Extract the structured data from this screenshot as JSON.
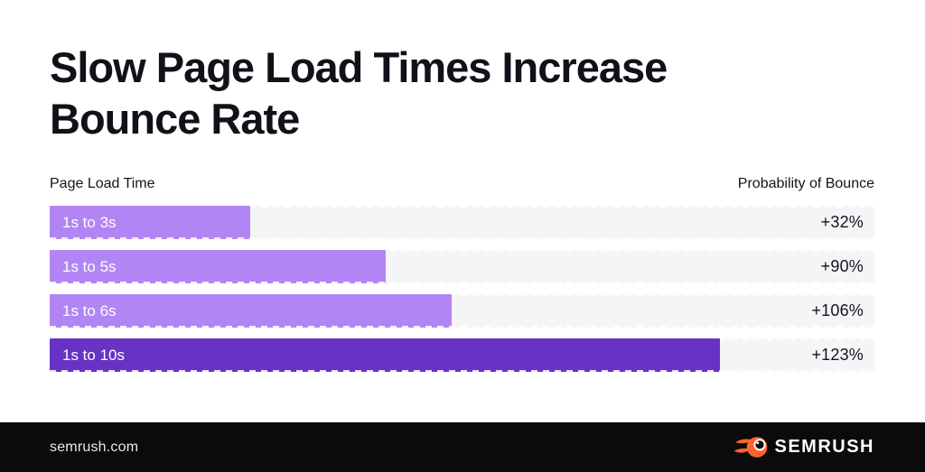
{
  "title": {
    "full": "Slow Page Load Times Increase Bounce Rate",
    "line1": "Slow Page Load Times Increase",
    "line2": "Bounce Rate"
  },
  "labels": {
    "left": "Page Load Time",
    "right": "Probability of Bounce"
  },
  "chart_data": {
    "type": "bar",
    "orientation": "horizontal",
    "title": "Slow Page Load Times Increase Bounce Rate",
    "xlabel": "Probability of Bounce",
    "ylabel": "Page Load Time",
    "categories": [
      "1s to 3s",
      "1s to 5s",
      "1s to 6s",
      "1s to 10s"
    ],
    "values": [
      32,
      90,
      106,
      123
    ],
    "value_labels": [
      "+32%",
      "+90%",
      "+106%",
      "+123%"
    ],
    "bar_width_pct": [
      24.3,
      40.7,
      48.7,
      81.3
    ],
    "bar_colors": [
      "#b285f5",
      "#b285f5",
      "#b285f5",
      "#6832c5"
    ],
    "track_color": "#f5f4f6",
    "grid": false,
    "legend": false
  },
  "footer": {
    "site": "semrush.com",
    "brand": "SEMRUSH",
    "brand_orange": "#ff642d",
    "background": "#0b0b0b"
  }
}
